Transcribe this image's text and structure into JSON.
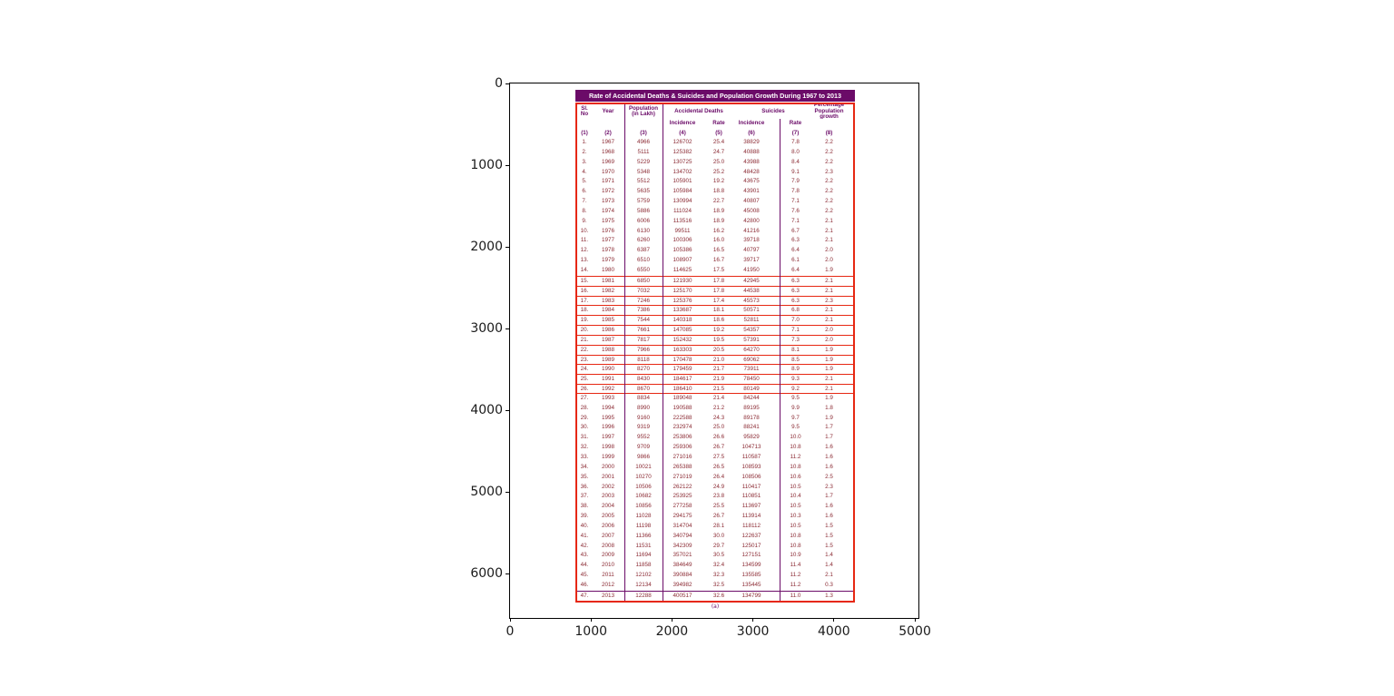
{
  "figure": {
    "x_ticks": [
      "0",
      "1000",
      "2000",
      "3000",
      "4000",
      "5000"
    ],
    "y_ticks": [
      "0",
      "1000",
      "2000",
      "3000",
      "4000",
      "5000",
      "6000"
    ]
  },
  "table": {
    "title": "Rate of Accidental Deaths & Suicides and Population Growth During 1967 to 2013",
    "caption": "(a)",
    "headers": {
      "col1": [
        "Sl.",
        "No"
      ],
      "col2": "Year",
      "col3": [
        "Population",
        "(in Lakh)"
      ],
      "acc_group": "Accidental Deaths",
      "sui_group": "Suicides",
      "col8": [
        "Percentage",
        "Population",
        "growth"
      ],
      "sub": [
        "Incidence",
        "Rate",
        "Incidence",
        "Rate"
      ],
      "col_numbers": [
        "(1)",
        "(2)",
        "(3)",
        "(4)",
        "(5)",
        "(6)",
        "(7)",
        "(8)"
      ]
    },
    "colors": {
      "title_bar": "#6b0b68",
      "purple_lines": "#6b0b68",
      "red_border": "#e62712",
      "data_text": "#8b2a33"
    }
  },
  "chart_data": {
    "type": "table",
    "title": "Rate of Accidental Deaths & Suicides and Population Growth During 1967 to 2013",
    "caption": "(a)",
    "columns": [
      "Sl. No",
      "Year",
      "Population (in Lakh)",
      "Accidental Deaths Incidence",
      "Accidental Deaths Rate",
      "Suicides Incidence",
      "Suicides Rate",
      "Percentage Population growth"
    ],
    "col_numbers": [
      "(1)",
      "(2)",
      "(3)",
      "(4)",
      "(5)",
      "(6)",
      "(7)",
      "(8)"
    ],
    "highlighted_red_row_range": [
      15,
      26
    ],
    "axes": {
      "x_ticks": [
        0,
        1000,
        2000,
        3000,
        4000,
        5000
      ],
      "y_ticks": [
        0,
        1000,
        2000,
        3000,
        4000,
        5000,
        6000
      ],
      "y_inverted": true
    },
    "rows": [
      [
        "1.",
        "1967",
        "4966",
        "126702",
        "25.4",
        "38829",
        "7.8",
        "2.2"
      ],
      [
        "2.",
        "1968",
        "5111",
        "125382",
        "24.7",
        "40888",
        "8.0",
        "2.2"
      ],
      [
        "3.",
        "1969",
        "5229",
        "130725",
        "25.0",
        "43988",
        "8.4",
        "2.2"
      ],
      [
        "4.",
        "1970",
        "5348",
        "134702",
        "25.2",
        "48428",
        "9.1",
        "2.3"
      ],
      [
        "5.",
        "1971",
        "5512",
        "105901",
        "19.2",
        "43675",
        "7.9",
        "2.2"
      ],
      [
        "6.",
        "1972",
        "5635",
        "105984",
        "18.8",
        "43901",
        "7.8",
        "2.2"
      ],
      [
        "7.",
        "1973",
        "5759",
        "130994",
        "22.7",
        "40807",
        "7.1",
        "2.2"
      ],
      [
        "8.",
        "1974",
        "5886",
        "111024",
        "18.9",
        "45008",
        "7.6",
        "2.2"
      ],
      [
        "9.",
        "1975",
        "6006",
        "113516",
        "18.9",
        "42800",
        "7.1",
        "2.1"
      ],
      [
        "10.",
        "1976",
        "6130",
        "99511",
        "16.2",
        "41216",
        "6.7",
        "2.1"
      ],
      [
        "11.",
        "1977",
        "6260",
        "100306",
        "16.0",
        "39718",
        "6.3",
        "2.1"
      ],
      [
        "12.",
        "1978",
        "6387",
        "105386",
        "16.5",
        "40797",
        "6.4",
        "2.0"
      ],
      [
        "13.",
        "1979",
        "6510",
        "108907",
        "16.7",
        "39717",
        "6.1",
        "2.0"
      ],
      [
        "14.",
        "1980",
        "6550",
        "114625",
        "17.5",
        "41950",
        "6.4",
        "1.9"
      ],
      [
        "15.",
        "1981",
        "6850",
        "121930",
        "17.8",
        "42945",
        "6.3",
        "2.1"
      ],
      [
        "16.",
        "1982",
        "7032",
        "125170",
        "17.8",
        "44538",
        "6.3",
        "2.1"
      ],
      [
        "17.",
        "1983",
        "7246",
        "125376",
        "17.4",
        "45573",
        "6.3",
        "2.3"
      ],
      [
        "18.",
        "1984",
        "7386",
        "133687",
        "18.1",
        "50571",
        "6.8",
        "2.1"
      ],
      [
        "19.",
        "1985",
        "7544",
        "140318",
        "18.6",
        "52811",
        "7.0",
        "2.1"
      ],
      [
        "20.",
        "1986",
        "7661",
        "147085",
        "19.2",
        "54357",
        "7.1",
        "2.0"
      ],
      [
        "21.",
        "1987",
        "7817",
        "152432",
        "19.5",
        "57391",
        "7.3",
        "2.0"
      ],
      [
        "22.",
        "1988",
        "7966",
        "163303",
        "20.5",
        "64270",
        "8.1",
        "1.9"
      ],
      [
        "23.",
        "1989",
        "8118",
        "170478",
        "21.0",
        "69062",
        "8.5",
        "1.9"
      ],
      [
        "24.",
        "1990",
        "8270",
        "179459",
        "21.7",
        "73911",
        "8.9",
        "1.9"
      ],
      [
        "25.",
        "1991",
        "8430",
        "184617",
        "21.9",
        "78450",
        "9.3",
        "2.1"
      ],
      [
        "26.",
        "1992",
        "8670",
        "186410",
        "21.5",
        "80149",
        "9.2",
        "2.1"
      ],
      [
        "27.",
        "1993",
        "8834",
        "189048",
        "21.4",
        "84244",
        "9.5",
        "1.9"
      ],
      [
        "28.",
        "1994",
        "8990",
        "190588",
        "21.2",
        "89195",
        "9.9",
        "1.8"
      ],
      [
        "29.",
        "1995",
        "9160",
        "222588",
        "24.3",
        "89178",
        "9.7",
        "1.9"
      ],
      [
        "30.",
        "1996",
        "9319",
        "232974",
        "25.0",
        "88241",
        "9.5",
        "1.7"
      ],
      [
        "31.",
        "1997",
        "9552",
        "253806",
        "26.6",
        "95829",
        "10.0",
        "1.7"
      ],
      [
        "32.",
        "1998",
        "9709",
        "259306",
        "26.7",
        "104713",
        "10.8",
        "1.6"
      ],
      [
        "33.",
        "1999",
        "9866",
        "271016",
        "27.5",
        "110587",
        "11.2",
        "1.6"
      ],
      [
        "34.",
        "2000",
        "10021",
        "265388",
        "26.5",
        "108593",
        "10.8",
        "1.6"
      ],
      [
        "35.",
        "2001",
        "10270",
        "271019",
        "26.4",
        "108506",
        "10.6",
        "2.5"
      ],
      [
        "36.",
        "2002",
        "10506",
        "262122",
        "24.9",
        "110417",
        "10.5",
        "2.3"
      ],
      [
        "37.",
        "2003",
        "10682",
        "253925",
        "23.8",
        "110851",
        "10.4",
        "1.7"
      ],
      [
        "38.",
        "2004",
        "10856",
        "277258",
        "25.5",
        "113697",
        "10.5",
        "1.6"
      ],
      [
        "39.",
        "2005",
        "11028",
        "294175",
        "26.7",
        "113914",
        "10.3",
        "1.6"
      ],
      [
        "40.",
        "2006",
        "11198",
        "314704",
        "28.1",
        "118112",
        "10.5",
        "1.5"
      ],
      [
        "41.",
        "2007",
        "11366",
        "340794",
        "30.0",
        "122637",
        "10.8",
        "1.5"
      ],
      [
        "42.",
        "2008",
        "11531",
        "342309",
        "29.7",
        "125017",
        "10.8",
        "1.5"
      ],
      [
        "43.",
        "2009",
        "11694",
        "357021",
        "30.5",
        "127151",
        "10.9",
        "1.4"
      ],
      [
        "44.",
        "2010",
        "11858",
        "384649",
        "32.4",
        "134599",
        "11.4",
        "1.4"
      ],
      [
        "45.",
        "2011",
        "12102",
        "390884",
        "32.3",
        "135585",
        "11.2",
        "2.1"
      ],
      [
        "46.",
        "2012",
        "12134",
        "394982",
        "32.5",
        "135445",
        "11.2",
        "0.3"
      ],
      [
        "47.",
        "2013",
        "12288",
        "400517",
        "32.6",
        "134799",
        "11.0",
        "1.3"
      ]
    ]
  }
}
